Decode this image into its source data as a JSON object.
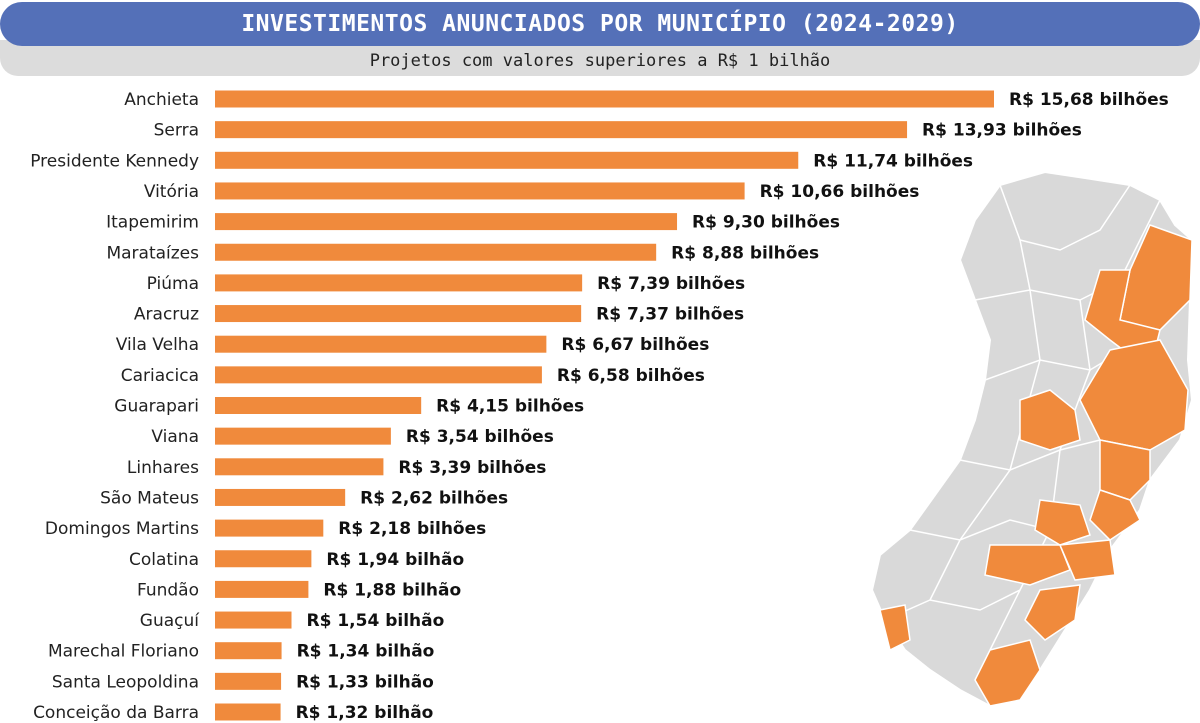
{
  "colors": {
    "header": "#5470b8",
    "subtitle_bg": "#dcdcdc",
    "bar": "#f08a3c",
    "map_base": "#d9d9d9",
    "map_highlight": "#f08a3c"
  },
  "chart_data": {
    "type": "bar",
    "orientation": "horizontal",
    "title": "INVESTIMENTOS ANUNCIADOS POR MUNICÍPIO (2024-2029)",
    "subtitle": "Projetos com valores superiores a R$ 1 bilhão",
    "unit": "R$ bilhões",
    "categories": [
      "Anchieta",
      "Serra",
      "Presidente Kennedy",
      "Vitória",
      "Itapemirim",
      "Marataízes",
      "Piúma",
      "Aracruz",
      "Vila Velha",
      "Cariacica",
      "Guarapari",
      "Viana",
      "Linhares",
      "São Mateus",
      "Domingos Martins",
      "Colatina",
      "Fundão",
      "Guaçuí",
      "Marechal Floriano",
      "Santa Leopoldina",
      "Conceição da Barra"
    ],
    "values": [
      15.68,
      13.93,
      11.74,
      10.66,
      9.3,
      8.88,
      7.39,
      7.37,
      6.67,
      6.58,
      4.15,
      3.54,
      3.39,
      2.62,
      2.18,
      1.94,
      1.88,
      1.54,
      1.34,
      1.33,
      1.32
    ],
    "data_labels": [
      "R$ 15,68 bilhões",
      "R$ 13,93 bilhões",
      "R$ 11,74 bilhões",
      "R$ 10,66 bilhões",
      "R$ 9,30 bilhões",
      "R$ 8,88 bilhões",
      "R$ 7,39 bilhões",
      "R$ 7,37 bilhões",
      "R$ 6,67 bilhões",
      "R$ 6,58 bilhões",
      "R$ 4,15 bilhões",
      "R$ 3,54 bilhões",
      "R$ 3,39 bilhões",
      "R$ 2,62 bilhões",
      "R$ 2,18 bilhões",
      "R$ 1,94 bilhão",
      "R$ 1,88 bilhão",
      "R$ 1,54 bilhão",
      "R$ 1,34 bilhão",
      "R$ 1,33 bilhão",
      "R$ 1,32 bilhão"
    ],
    "grid": false
  }
}
